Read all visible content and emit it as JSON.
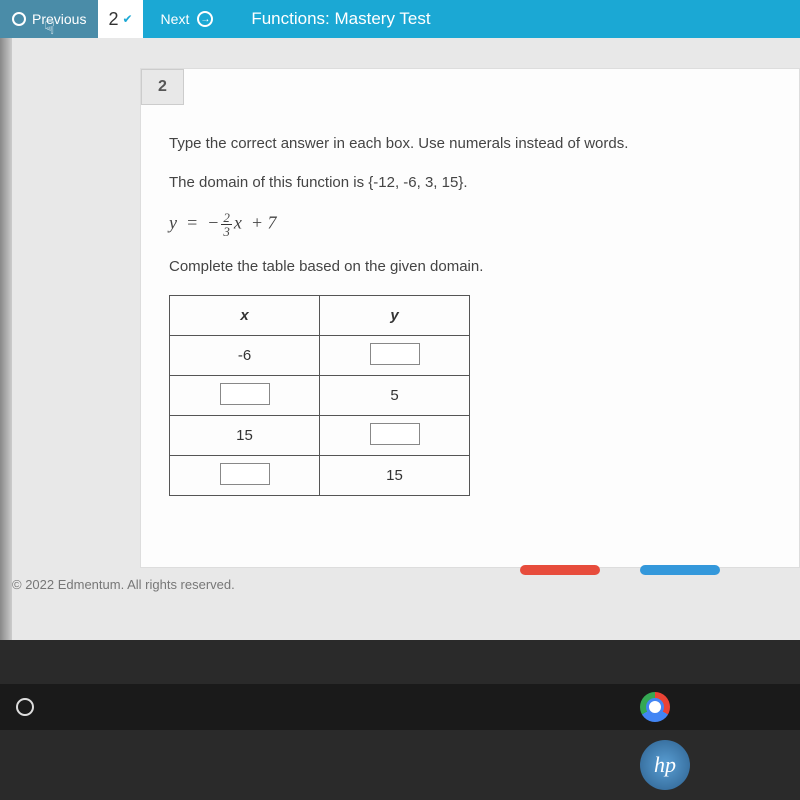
{
  "topbar": {
    "prev_label": "Previous",
    "page_number": "2",
    "next_label": "Next",
    "title": "Functions: Mastery Test"
  },
  "question": {
    "number": "2",
    "instruction": "Type the correct answer in each box. Use numerals instead of words.",
    "domain_text": "The domain of this function is {-12, -6, 3, 15}.",
    "formula_lhs": "y",
    "formula_eq": "=",
    "formula_neg": "−",
    "formula_frac_num": "2",
    "formula_frac_den": "3",
    "formula_var": "x",
    "formula_plus": "+ 7",
    "complete_text": "Complete the table based on the given domain.",
    "table": {
      "header_x": "x",
      "header_y": "y",
      "rows": [
        {
          "x": "-6",
          "y_input": true
        },
        {
          "x_input": true,
          "y": "5"
        },
        {
          "x": "15",
          "y_input": true
        },
        {
          "x_input": true,
          "y": "15"
        }
      ]
    }
  },
  "footer": "© 2022 Edmentum. All rights reserved.",
  "hp_label": "hp"
}
